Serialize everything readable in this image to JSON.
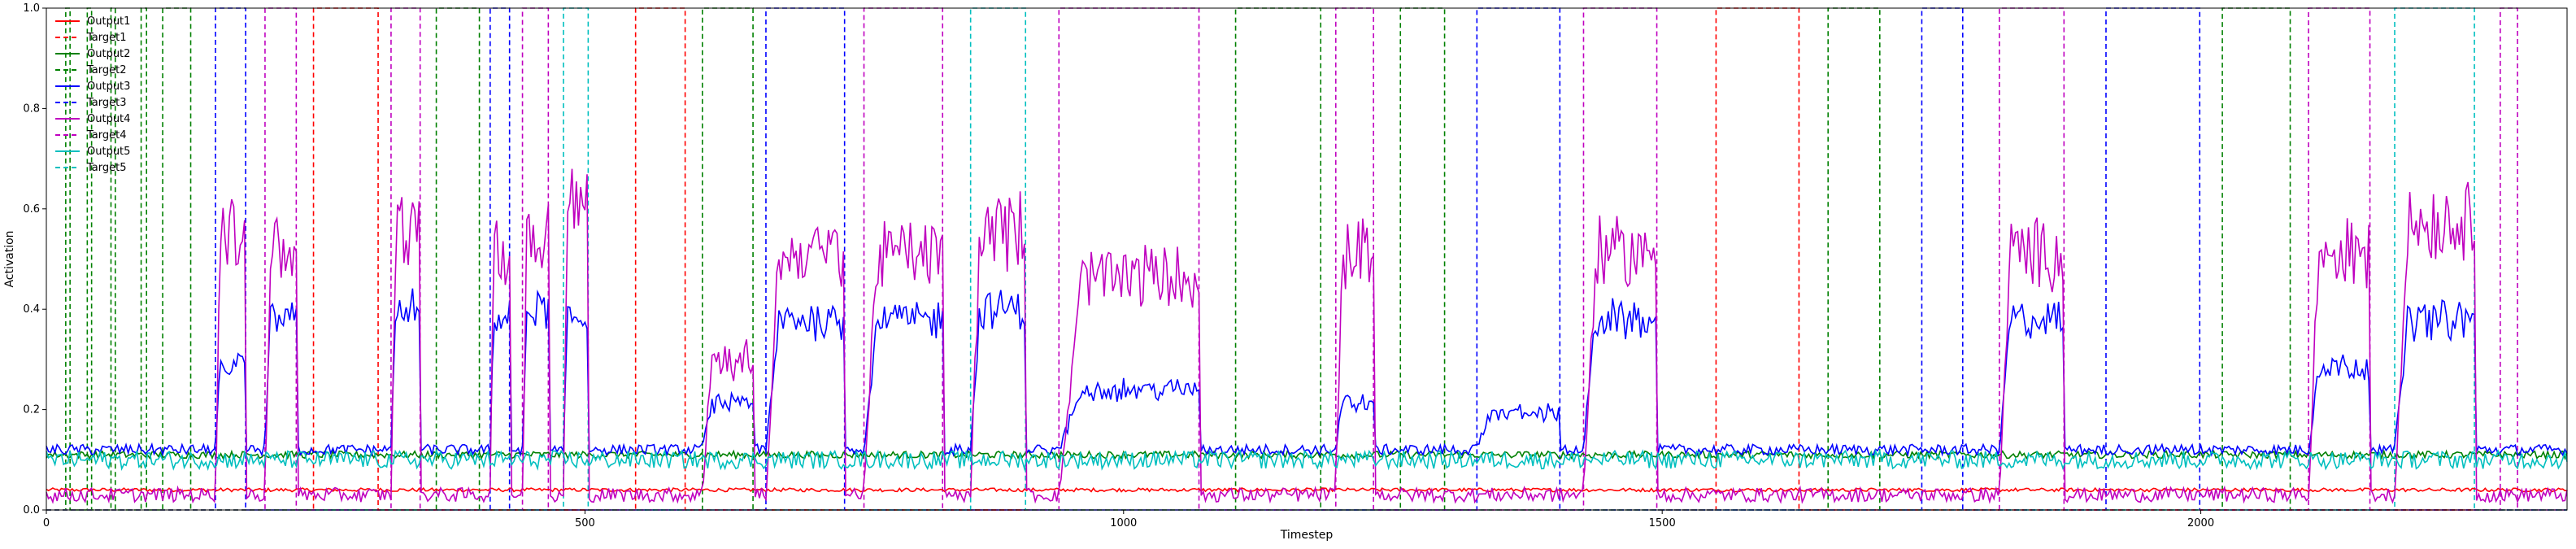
{
  "chart_data": {
    "type": "line",
    "title": "",
    "xlabel": "Timestep",
    "ylabel": "Activation",
    "xlim": [
      0,
      2340
    ],
    "ylim": [
      0.0,
      1.0
    ],
    "xticks": [
      0,
      500,
      1000,
      1500,
      2000
    ],
    "yticks": [
      0.0,
      0.2,
      0.4,
      0.6,
      0.8,
      1.0
    ],
    "xtick_labels": [
      "0",
      "500",
      "1000",
      "1500",
      "2000"
    ],
    "ytick_labels": [
      "0.0",
      "0.2",
      "0.4",
      "0.6",
      "0.8",
      "1.0"
    ],
    "grid": false,
    "legend_position": "upper-left",
    "target_on": 1.0,
    "target_off": 0.0,
    "baseline_output_levels": {
      "Output1": 0.04,
      "Output2": 0.11,
      "Output3": 0.12,
      "Output4": 0.03,
      "Output5": 0.1
    },
    "legend": [
      {
        "label": "Output1",
        "color": "#ff0000",
        "style": "solid"
      },
      {
        "label": "Target1",
        "color": "#ff0000",
        "style": "dashed"
      },
      {
        "label": "Output2",
        "color": "#008000",
        "style": "solid"
      },
      {
        "label": "Target2",
        "color": "#008000",
        "style": "dashed"
      },
      {
        "label": "Output3",
        "color": "#0000ff",
        "style": "solid"
      },
      {
        "label": "Target3",
        "color": "#0000ff",
        "style": "dashed"
      },
      {
        "label": "Output4",
        "color": "#bf00bf",
        "style": "solid"
      },
      {
        "label": "Target4",
        "color": "#bf00bf",
        "style": "dashed"
      },
      {
        "label": "Output5",
        "color": "#00bfbf",
        "style": "solid"
      },
      {
        "label": "Target5",
        "color": "#00bfbf",
        "style": "dashed"
      }
    ],
    "target_segments": [
      {
        "series": "Target2",
        "start": 18,
        "end": 22
      },
      {
        "series": "Target2",
        "start": 38,
        "end": 42
      },
      {
        "series": "Target2",
        "start": 60,
        "end": 64
      },
      {
        "series": "Target2",
        "start": 88,
        "end": 93
      },
      {
        "series": "Target2",
        "start": 108,
        "end": 134
      },
      {
        "series": "Target3",
        "start": 157,
        "end": 185
      },
      {
        "series": "Target4",
        "start": 203,
        "end": 232
      },
      {
        "series": "Target1",
        "start": 248,
        "end": 308
      },
      {
        "series": "Target4",
        "start": 320,
        "end": 347
      },
      {
        "series": "Target2",
        "start": 362,
        "end": 402
      },
      {
        "series": "Target3",
        "start": 412,
        "end": 430
      },
      {
        "series": "Target4",
        "start": 442,
        "end": 466
      },
      {
        "series": "Target5",
        "start": 480,
        "end": 503
      },
      {
        "series": "Target1",
        "start": 547,
        "end": 593
      },
      {
        "series": "Target2",
        "start": 609,
        "end": 656
      },
      {
        "series": "Target3",
        "start": 668,
        "end": 741
      },
      {
        "series": "Target4",
        "start": 759,
        "end": 832
      },
      {
        "series": "Target5",
        "start": 858,
        "end": 909
      },
      {
        "series": "Target4",
        "start": 940,
        "end": 1070
      },
      {
        "series": "Target2",
        "start": 1104,
        "end": 1183
      },
      {
        "series": "Target4",
        "start": 1197,
        "end": 1232
      },
      {
        "series": "Target2",
        "start": 1257,
        "end": 1298
      },
      {
        "series": "Target3",
        "start": 1328,
        "end": 1405
      },
      {
        "series": "Target4",
        "start": 1427,
        "end": 1495
      },
      {
        "series": "Target1",
        "start": 1550,
        "end": 1627
      },
      {
        "series": "Target2",
        "start": 1654,
        "end": 1702
      },
      {
        "series": "Target3",
        "start": 1741,
        "end": 1779
      },
      {
        "series": "Target4",
        "start": 1813,
        "end": 1873
      },
      {
        "series": "Target3",
        "start": 1912,
        "end": 1999
      },
      {
        "series": "Target2",
        "start": 2020,
        "end": 2083
      },
      {
        "series": "Target4",
        "start": 2100,
        "end": 2157
      },
      {
        "series": "Target5",
        "start": 2180,
        "end": 2254
      },
      {
        "series": "Target4",
        "start": 2278,
        "end": 2294
      }
    ],
    "output_responses": [
      {
        "start": 157,
        "end": 185,
        "peaks": {
          "Output3": 0.3,
          "Output4": 0.6
        }
      },
      {
        "start": 203,
        "end": 232,
        "peaks": {
          "Output3": 0.4,
          "Output4": 0.55
        }
      },
      {
        "start": 320,
        "end": 347,
        "peaks": {
          "Output3": 0.42,
          "Output4": 0.6
        }
      },
      {
        "start": 412,
        "end": 430,
        "peaks": {
          "Output3": 0.4,
          "Output4": 0.55
        }
      },
      {
        "start": 442,
        "end": 466,
        "peaks": {
          "Output3": 0.42,
          "Output4": 0.6
        }
      },
      {
        "start": 480,
        "end": 503,
        "peaks": {
          "Output3": 0.4,
          "Output4": 0.65
        }
      },
      {
        "start": 609,
        "end": 656,
        "peaks": {
          "Output3": 0.22,
          "Output4": 0.32
        }
      },
      {
        "start": 668,
        "end": 741,
        "peaks": {
          "Output3": 0.4,
          "Output4": 0.55
        }
      },
      {
        "start": 759,
        "end": 832,
        "peaks": {
          "Output3": 0.4,
          "Output4": 0.55
        }
      },
      {
        "start": 858,
        "end": 909,
        "peaks": {
          "Output3": 0.42,
          "Output4": 0.6
        }
      },
      {
        "start": 940,
        "end": 1070,
        "peaks": {
          "Output3": 0.25,
          "Output4": 0.5
        }
      },
      {
        "start": 1197,
        "end": 1232,
        "peaks": {
          "Output3": 0.22,
          "Output4": 0.55
        }
      },
      {
        "start": 1328,
        "end": 1405,
        "peaks": {
          "Output3": 0.2,
          "Output4": 0.0
        }
      },
      {
        "start": 1427,
        "end": 1495,
        "peaks": {
          "Output3": 0.4,
          "Output4": 0.55
        }
      },
      {
        "start": 1813,
        "end": 1873,
        "peaks": {
          "Output3": 0.4,
          "Output4": 0.55
        }
      },
      {
        "start": 1912,
        "end": 1999,
        "peaks": {
          "Output3": 0.12,
          "Output4": 0.0
        }
      },
      {
        "start": 2100,
        "end": 2157,
        "peaks": {
          "Output3": 0.3,
          "Output4": 0.55
        }
      },
      {
        "start": 2180,
        "end": 2254,
        "peaks": {
          "Output3": 0.4,
          "Output4": 0.62
        }
      }
    ]
  }
}
